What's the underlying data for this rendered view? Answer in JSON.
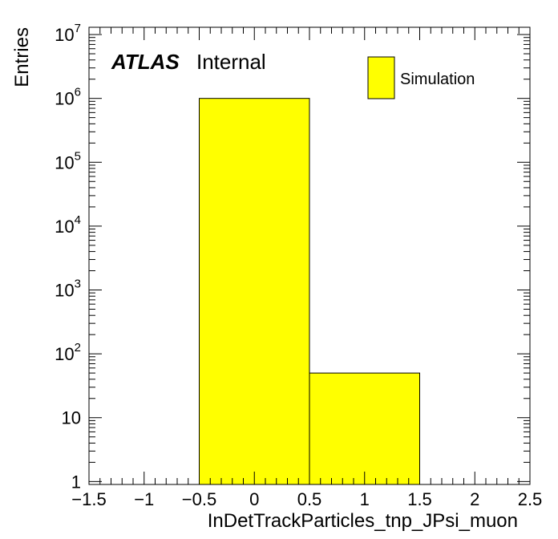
{
  "chart_data": {
    "type": "bar",
    "histogram": true,
    "bins": [
      {
        "low": -0.5,
        "high": 0.5,
        "value": 1000000
      },
      {
        "low": 0.5,
        "high": 1.5,
        "value": 50
      }
    ],
    "xlabel": "InDetTrackParticles_tnp_JPsi_muon",
    "ylabel": "Entries",
    "xlim": [
      -1.5,
      2.5
    ],
    "ylim": [
      0.9,
      13000000
    ],
    "yscale": "log",
    "x_ticks": [
      {
        "value": -1.5,
        "label": "−1.5"
      },
      {
        "value": -1,
        "label": "−1"
      },
      {
        "value": -0.5,
        "label": "−0.5"
      },
      {
        "value": 0,
        "label": "0"
      },
      {
        "value": 0.5,
        "label": "0.5"
      },
      {
        "value": 1,
        "label": "1"
      },
      {
        "value": 1.5,
        "label": "1.5"
      },
      {
        "value": 2,
        "label": "2"
      },
      {
        "value": 2.5,
        "label": "2.5"
      }
    ],
    "y_ticks": [
      {
        "value": 1,
        "base": "1",
        "exp": ""
      },
      {
        "value": 10,
        "base": "10",
        "exp": ""
      },
      {
        "value": 100,
        "base": "10",
        "exp": "2"
      },
      {
        "value": 1000,
        "base": "10",
        "exp": "3"
      },
      {
        "value": 10000,
        "base": "10",
        "exp": "4"
      },
      {
        "value": 100000,
        "base": "10",
        "exp": "5"
      },
      {
        "value": 1000000,
        "base": "10",
        "exp": "6"
      },
      {
        "value": 10000000,
        "base": "10",
        "exp": "7"
      }
    ],
    "grid": false,
    "fill_color": "#ffff00",
    "legend_position": "top-right",
    "legend": [
      {
        "name": "Simulation",
        "color": "#ffff00"
      }
    ],
    "atlas_label": {
      "bold": "ATLAS",
      "normal": "Internal"
    }
  }
}
